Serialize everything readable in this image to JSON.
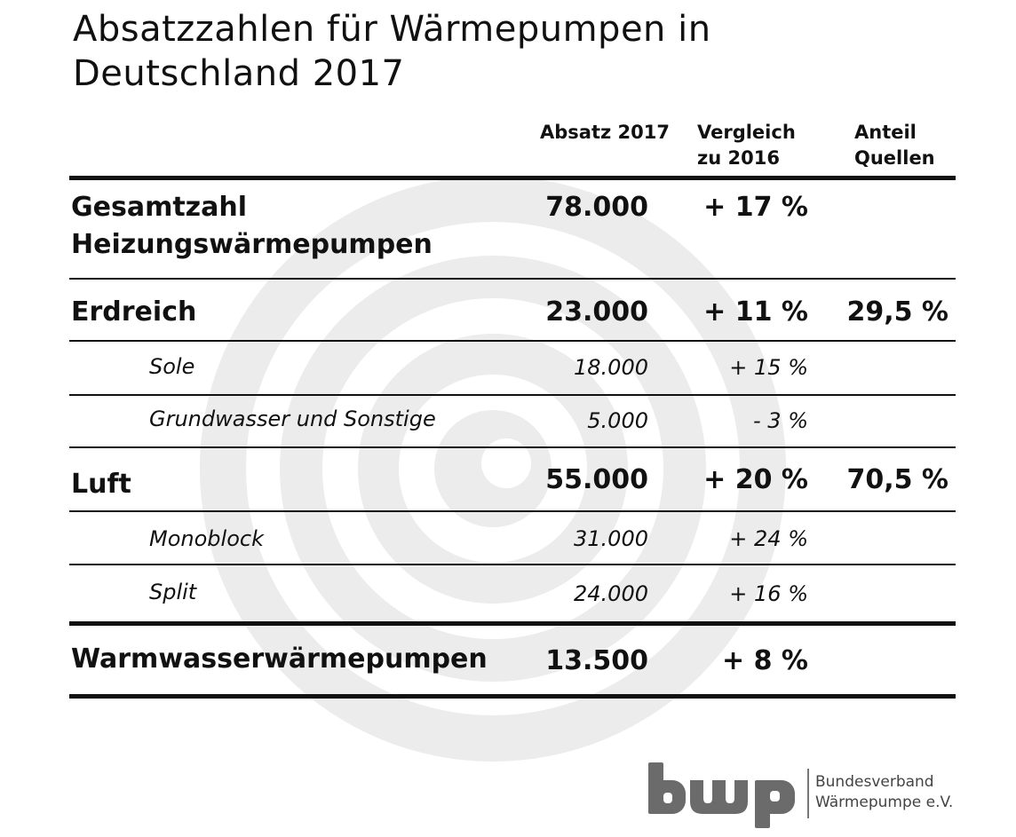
{
  "title_lines": [
    "Absatzzahlen für Wärmepumpen in",
    "Deutschland 2017"
  ],
  "chart_data": {
    "type": "table",
    "columns": [
      {
        "lines": [
          "Absatz 2017"
        ]
      },
      {
        "lines": [
          "Vergleich",
          "zu 2016"
        ]
      },
      {
        "lines": [
          "Anteil",
          "Quellen"
        ]
      }
    ],
    "rows": [
      {
        "label_lines": [
          "Gesamtzahl",
          "Heizungswärmepumpen"
        ],
        "absatz": "78.000",
        "vergleich": "+ 17 %",
        "anteil": ""
      },
      {
        "label_lines": [
          "Erdreich"
        ],
        "absatz": "23.000",
        "vergleich": "+ 11 %",
        "anteil": "29,5 %"
      },
      {
        "label_lines": [
          "Sole"
        ],
        "absatz": "18.000",
        "vergleich": "+ 15 %",
        "anteil": ""
      },
      {
        "label_lines": [
          "Grundwasser und Sonstige"
        ],
        "absatz": "5.000",
        "vergleich": "- 3 %",
        "anteil": ""
      },
      {
        "label_lines": [
          "Luft"
        ],
        "absatz": "55.000",
        "vergleich": "+ 20 %",
        "anteil": "70,5 %"
      },
      {
        "label_lines": [
          "Monoblock"
        ],
        "absatz": "31.000",
        "vergleich": "+ 24 %",
        "anteil": ""
      },
      {
        "label_lines": [
          "Split"
        ],
        "absatz": "24.000",
        "vergleich": "+ 16 %",
        "anteil": ""
      },
      {
        "label_lines": [
          "Warmwasserwärmepumpen"
        ],
        "absatz": "13.500",
        "vergleich": "+ 8 %",
        "anteil": ""
      }
    ]
  },
  "logo": {
    "brand": "bwp",
    "org_lines": [
      "Bundesverband",
      "Wärmepumpe e.V."
    ]
  },
  "colors": {
    "text": "#111111",
    "watermark": "#ececec",
    "logo": "#6b6b6b"
  }
}
